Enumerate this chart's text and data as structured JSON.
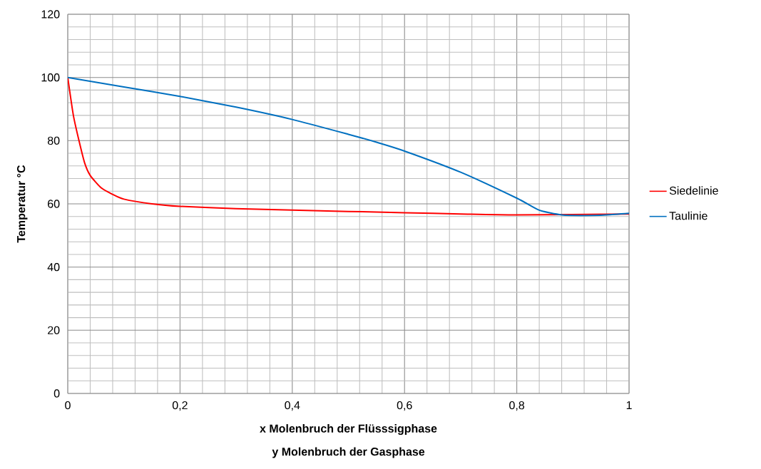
{
  "chart_data": {
    "type": "line",
    "xlabel": "x Molenbruch der Flüsssigphase",
    "ylabel": "Temperatur °C",
    "annotations": [
      "y Molenbruch der Gasphase"
    ],
    "series": [
      {
        "name": "Siedelinie",
        "color": "#ff0000",
        "x": [
          0,
          0.01,
          0.02,
          0.03,
          0.04,
          0.06,
          0.08,
          0.1,
          0.15,
          0.2,
          0.3,
          0.4,
          0.5,
          0.6,
          0.7,
          0.8,
          0.9,
          1
        ],
        "values": [
          100,
          88,
          80,
          73,
          69,
          65,
          63,
          61.5,
          60,
          59.2,
          58.5,
          58,
          57.6,
          57.2,
          56.8,
          56.5,
          null,
          56.8
        ]
      },
      {
        "name": "Taulinie",
        "color": "#0070c0",
        "x": [
          0,
          0.1,
          0.2,
          0.3,
          0.4,
          0.5,
          0.55,
          0.6,
          0.7,
          0.8,
          0.84,
          0.88,
          0.92,
          0.96,
          1
        ],
        "values": [
          100,
          97,
          94,
          90.6,
          86.7,
          82,
          79.5,
          76.7,
          70,
          61.8,
          58,
          56.5,
          56.3,
          56.5,
          57
        ]
      }
    ],
    "xlim": [
      0,
      1
    ],
    "ylim": [
      0,
      120
    ],
    "xticks": [
      0,
      {
        "value": 0.2,
        "label": "0,2"
      },
      {
        "value": 0.4,
        "label": "0,4"
      },
      {
        "value": 0.6,
        "label": "0,6"
      },
      {
        "value": 0.8,
        "label": "0,8"
      },
      1
    ],
    "yticks": [
      0,
      20,
      40,
      60,
      80,
      100,
      120
    ],
    "grid": true,
    "legend": "right",
    "marker": "none",
    "line_style": "solid"
  }
}
